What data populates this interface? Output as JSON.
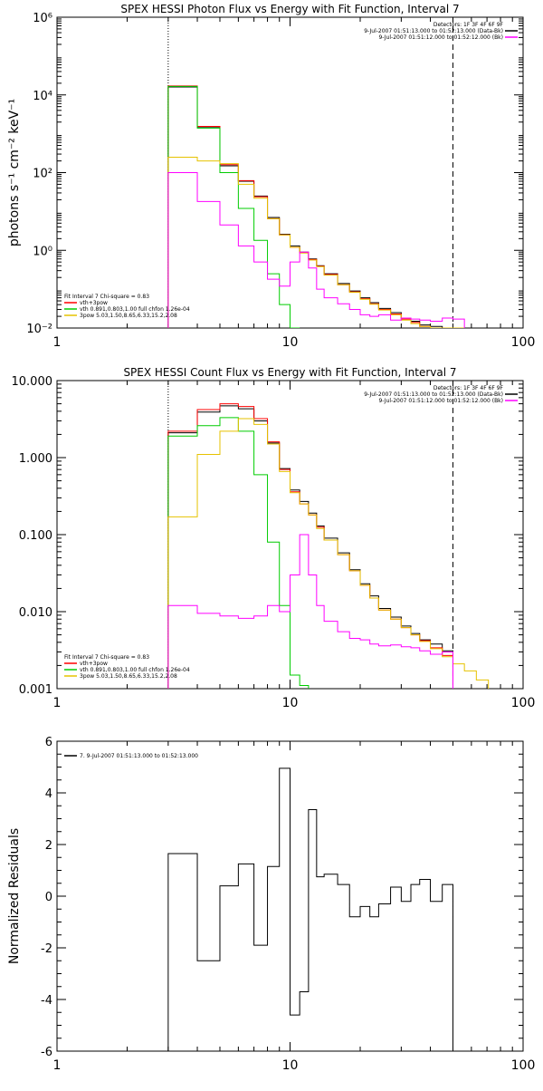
{
  "chart_data": [
    {
      "type": "line",
      "title": "SPEX HESSI Photon Flux vs Energy with Fit Function, Interval 7",
      "xlabel": "",
      "ylabel": "photons s⁻¹ cm⁻² keV⁻¹",
      "xscale": "log",
      "yscale": "log",
      "xlim": [
        1,
        100
      ],
      "ylim": [
        0.01,
        1000000
      ],
      "xticks": [
        1,
        10,
        100
      ],
      "xtick_labels": [
        "1",
        "10",
        "100"
      ],
      "yticks": [
        0.01,
        1,
        100,
        10000,
        1000000
      ],
      "ytick_labels": [
        "10⁻²",
        "10⁰",
        "10²",
        "10⁴",
        "10⁶"
      ],
      "vlines": [
        {
          "x": 3,
          "style": "dotted"
        },
        {
          "x": 50,
          "style": "dashed"
        }
      ],
      "info_lines": [
        "Detectors: 1F 3F 4F 6F 9F",
        "9-Jul-2007 01:51:13.000 to 01:52:13.000 (Data-Bk)",
        "9-Jul-2007 01:51:12.000 to 01:52:12.000 (Bk)"
      ],
      "info_colors": [
        "",
        "#000000",
        "#ff00ff"
      ],
      "fit_label": "Fit Interval  7   Chi-square = 0.83",
      "legend_entries": [
        "vth+3pow",
        "vth 0.891,0.803,1.00  full chfon 1.26e-04",
        "3pow 5.03,1.50,8.65,6.33,15.2,2.08"
      ],
      "legend_colors": [
        "#ff0000",
        "#00cc00",
        "#e6c200"
      ],
      "edges": [
        3,
        4,
        5,
        6,
        7,
        8,
        9,
        10,
        11,
        12,
        13,
        14,
        16,
        18,
        20,
        22,
        24,
        27,
        30,
        33,
        36,
        40,
        45,
        50,
        56
      ],
      "series": [
        {
          "color": "#000000",
          "values": [
            16000,
            1500,
            150,
            60,
            25,
            7,
            2.6,
            1.3,
            0.9,
            0.6,
            0.4,
            0.25,
            0.14,
            0.09,
            0.06,
            0.045,
            0.032,
            0.025,
            0.018,
            0.015,
            0.012,
            0.011,
            0.01,
            0.009
          ]
        },
        {
          "color": "#ff0000",
          "values": [
            17000,
            1550,
            160,
            62,
            24,
            6.5,
            2.5,
            1.2,
            0.88,
            0.58,
            0.39,
            0.24,
            0.13,
            0.085,
            0.057,
            0.042,
            0.03,
            0.023,
            0.017,
            0.014,
            0.011,
            0.01,
            0.0095,
            0.0088
          ]
        },
        {
          "color": "#00cc00",
          "values": [
            16500,
            1400,
            100,
            12,
            1.8,
            0.25,
            0.04,
            0.007
          ]
        },
        {
          "color": "#e6c200",
          "values": [
            250,
            200,
            170,
            50,
            22,
            6.5,
            2.5,
            1.2,
            0.85,
            0.56,
            0.38,
            0.23,
            0.13,
            0.083,
            0.055,
            0.041,
            0.029,
            0.022,
            0.016,
            0.013,
            0.011,
            0.0098,
            0.0092,
            0.0086
          ]
        },
        {
          "color": "#ff00ff",
          "values": [
            100,
            18,
            4.5,
            1.3,
            0.5,
            0.18,
            0.12,
            0.5,
            0.9,
            0.35,
            0.1,
            0.06,
            0.042,
            0.03,
            0.022,
            0.02,
            0.022,
            0.016,
            0.018,
            0.017,
            0.016,
            0.015,
            0.018,
            0.017
          ]
        }
      ]
    },
    {
      "type": "line",
      "title": "SPEX HESSI Count Flux vs Energy with Fit Function, Interval 7",
      "xlabel": "",
      "ylabel": "",
      "xscale": "log",
      "yscale": "log",
      "xlim": [
        1,
        100
      ],
      "ylim": [
        0.001,
        10
      ],
      "xticks": [
        1,
        10,
        100
      ],
      "xtick_labels": [
        "1",
        "10",
        "100"
      ],
      "yticks": [
        0.001,
        0.01,
        0.1,
        1,
        10
      ],
      "ytick_labels": [
        "0.001",
        "0.010",
        "0.100",
        "1.000",
        "10.000"
      ],
      "vlines": [
        {
          "x": 3,
          "style": "dotted"
        },
        {
          "x": 50,
          "style": "dashed"
        }
      ],
      "info_lines": [
        "Detectors: 1F 3F 4F 6F 9F",
        "9-Jul-2007 01:51:13.000 to 01:52:13.000 (Data-Bk)",
        "9-Jul-2007 01:51:12.000 to 01:52:12.000 (Bk)"
      ],
      "info_colors": [
        "",
        "#000000",
        "#ff00ff"
      ],
      "fit_label": "Fit Interval  7   Chi-square = 0.83",
      "legend_entries": [
        "vth+3pow",
        "vth 0.891,0.803,1.00  full chfon 1.26e-04",
        "3pow 5.03,1.50,8.65,6.33,15.2,2.08"
      ],
      "legend_colors": [
        "#ff0000",
        "#00cc00",
        "#e6c200"
      ],
      "edges": [
        3,
        4,
        5,
        6,
        7,
        8,
        9,
        10,
        11,
        12,
        13,
        14,
        16,
        18,
        20,
        22,
        24,
        27,
        30,
        33,
        36,
        40,
        45,
        50,
        56,
        63,
        71
      ],
      "series": [
        {
          "color": "#000000",
          "values": [
            2.1,
            3.9,
            4.7,
            4.3,
            3.0,
            1.55,
            0.72,
            0.38,
            0.27,
            0.19,
            0.13,
            0.09,
            0.058,
            0.035,
            0.023,
            0.016,
            0.011,
            0.0085,
            0.0065,
            0.0052,
            0.0043,
            0.0038,
            0.0031
          ]
        },
        {
          "color": "#ff0000",
          "values": [
            2.2,
            4.2,
            5.0,
            4.6,
            3.2,
            1.6,
            0.7,
            0.36,
            0.25,
            0.18,
            0.125,
            0.085,
            0.055,
            0.034,
            0.022,
            0.015,
            0.0105,
            0.008,
            0.0062,
            0.005,
            0.0042,
            0.0034,
            0.0027
          ]
        },
        {
          "color": "#00cc00",
          "values": [
            1.9,
            2.6,
            3.3,
            2.2,
            0.6,
            0.08,
            0.012,
            0.0015,
            0.0011
          ]
        },
        {
          "color": "#e6c200",
          "values": [
            0.17,
            1.1,
            2.2,
            3.2,
            2.7,
            1.5,
            0.66,
            0.35,
            0.25,
            0.18,
            0.12,
            0.085,
            0.055,
            0.034,
            0.022,
            0.015,
            0.0105,
            0.008,
            0.0062,
            0.005,
            0.0041,
            0.0033,
            0.0026,
            0.0021,
            0.0017,
            0.0013
          ]
        },
        {
          "color": "#ff00ff",
          "values": [
            0.012,
            0.0095,
            0.0088,
            0.0082,
            0.0088,
            0.012,
            0.01,
            0.03,
            0.1,
            0.03,
            0.012,
            0.0075,
            0.0055,
            0.0045,
            0.0043,
            0.0038,
            0.0036,
            0.0037,
            0.0035,
            0.0034,
            0.0031,
            0.0028,
            0.003
          ]
        }
      ]
    },
    {
      "type": "line",
      "title": "",
      "xlabel": "",
      "ylabel": "Normalized Residuals",
      "xscale": "log",
      "yscale": "linear",
      "xlim": [
        1,
        100
      ],
      "ylim": [
        -6,
        6
      ],
      "xticks": [
        1,
        10,
        100
      ],
      "xtick_labels": [
        "1",
        "10",
        "100"
      ],
      "yticks": [
        -6,
        -4,
        -2,
        0,
        2,
        4,
        6
      ],
      "ytick_labels": [
        "-6",
        "-4",
        "-2",
        "0",
        "2",
        "4",
        "6"
      ],
      "legend_entries": [
        "7.  9-Jul-2007 01:51:13.000 to 01:52:13.000"
      ],
      "legend_colors": [
        "#000000"
      ],
      "edges": [
        3,
        4,
        5,
        6,
        7,
        8,
        9,
        10,
        11,
        12,
        13,
        14,
        16,
        18,
        20,
        22,
        24,
        27,
        30,
        33,
        36,
        40,
        45,
        50
      ],
      "series": [
        {
          "color": "#000000",
          "values": [
            1.65,
            -2.5,
            0.4,
            1.25,
            -1.9,
            1.15,
            4.95,
            -4.6,
            -3.7,
            3.35,
            0.75,
            0.85,
            0.45,
            -0.8,
            -0.4,
            -0.8,
            -0.3,
            0.35,
            -0.2,
            0.45,
            0.65,
            -0.2,
            0.45
          ]
        }
      ]
    }
  ]
}
